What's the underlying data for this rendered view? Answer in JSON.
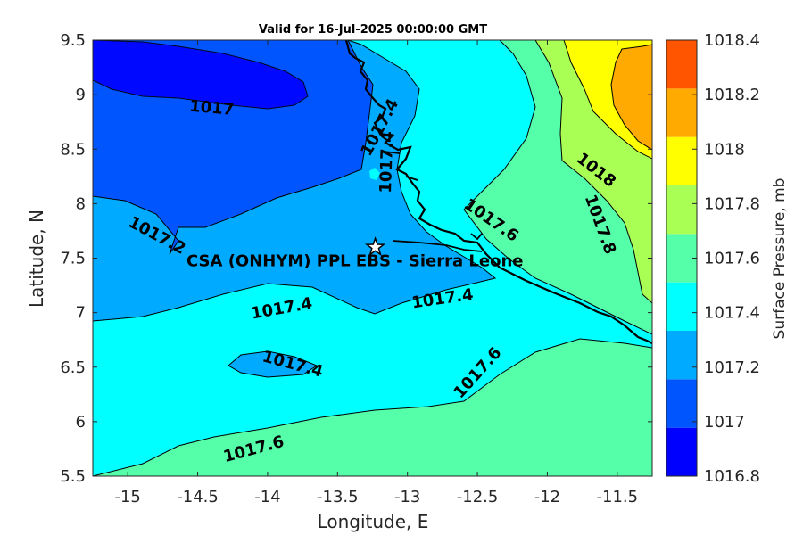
{
  "title": "Valid for 16-Jul-2025 00:00:00 GMT",
  "x_axis": {
    "label": "Longitude, E",
    "ticks": [
      "-15",
      "-14.5",
      "-14",
      "-13.5",
      "-13",
      "-12.5",
      "-12",
      "-11.5"
    ]
  },
  "y_axis": {
    "label": "Latitude, N",
    "ticks": [
      "5.5",
      "6",
      "6.5",
      "7",
      "7.5",
      "8",
      "8.5",
      "9",
      "9.5"
    ]
  },
  "colorbar": {
    "label": "Surface Pressure, mb",
    "ticks": [
      "1016.8",
      "1017",
      "1017.2",
      "1017.4",
      "1017.6",
      "1017.8",
      "1018",
      "1018.2",
      "1018.4"
    ],
    "colors": [
      "#0000ff",
      "#0055ff",
      "#00aaff",
      "#00ffff",
      "#55ffaa",
      "#aaff55",
      "#ffff00",
      "#ffaa00",
      "#ff5500"
    ]
  },
  "contour_labels": [
    {
      "text": "1017",
      "lon": -14.4,
      "lat": 8.88,
      "angle": 5
    },
    {
      "text": "1017.2",
      "lon": -14.79,
      "lat": 7.71,
      "angle": 28
    },
    {
      "text": "1017.4",
      "lon": -13.2,
      "lat": 8.7,
      "angle": -62
    },
    {
      "text": "1017.4",
      "lon": -13.15,
      "lat": 8.38,
      "angle": -88
    },
    {
      "text": "1017.6",
      "lon": -12.4,
      "lat": 7.85,
      "angle": 35
    },
    {
      "text": "1018",
      "lon": -11.65,
      "lat": 8.31,
      "angle": 38
    },
    {
      "text": "1017.8",
      "lon": -11.62,
      "lat": 7.81,
      "angle": 70
    },
    {
      "text": "1017.4",
      "lon": -13.9,
      "lat": 7.04,
      "angle": -10
    },
    {
      "text": "1017.4",
      "lon": -12.75,
      "lat": 7.13,
      "angle": -8
    },
    {
      "text": "1017.4",
      "lon": -13.82,
      "lat": 6.53,
      "angle": 15
    },
    {
      "text": "1017.6",
      "lon": -12.5,
      "lat": 6.45,
      "angle": -48
    },
    {
      "text": "1017.6",
      "lon": -14.1,
      "lat": 5.75,
      "angle": -15
    }
  ],
  "site": {
    "label": "CSA (ONHYM) PPL EBS  - Sierra Leone",
    "lon": -13.23,
    "lat": 7.6
  }
}
